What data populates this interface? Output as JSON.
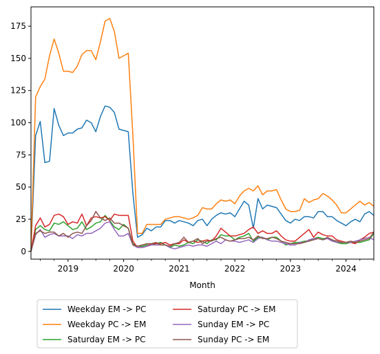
{
  "chart_data": {
    "type": "line",
    "title": "",
    "xlabel": "Month",
    "ylabel": "",
    "x_start": "2018-05",
    "x_end": "2024-07",
    "xlim": [
      "2018-05",
      "2024-07"
    ],
    "ylim": [
      -6,
      190
    ],
    "x_ticks": [
      {
        "label": "2019",
        "date": "2019-01"
      },
      {
        "label": "2020",
        "date": "2020-01"
      },
      {
        "label": "2021",
        "date": "2021-01"
      },
      {
        "label": "2022",
        "date": "2022-01"
      },
      {
        "label": "2023",
        "date": "2023-01"
      },
      {
        "label": "2024",
        "date": "2024-01"
      }
    ],
    "y_ticks": [
      0,
      25,
      50,
      75,
      100,
      125,
      150,
      175
    ],
    "grid": false,
    "legend_position": "below",
    "series": [
      {
        "name": "Weekday EM -> PC",
        "color": "#1f77b4",
        "values": [
          0,
          90,
          101,
          69,
          70,
          111,
          98,
          90,
          92,
          92,
          95,
          96,
          102,
          100,
          93,
          105,
          113,
          112,
          108,
          95,
          94,
          93,
          45,
          11,
          13,
          18,
          16,
          19,
          19,
          24,
          24,
          22,
          24,
          23,
          22,
          20,
          24,
          25,
          20,
          25,
          28,
          30,
          29,
          30,
          27,
          33,
          39,
          36,
          18,
          41,
          33,
          36,
          35,
          34,
          29,
          24,
          22,
          25,
          24,
          27,
          27,
          26,
          31,
          31,
          27,
          27,
          24,
          22,
          20,
          23,
          25,
          23,
          29,
          31,
          28
        ]
      },
      {
        "name": "Weekday PC -> EM",
        "color": "#ff7f0e",
        "values": [
          0,
          120,
          128,
          134,
          152,
          165,
          154,
          140,
          140,
          139,
          144,
          153,
          156,
          156,
          149,
          163,
          179,
          181,
          171,
          150,
          152,
          154,
          90,
          14,
          14,
          21,
          21,
          21,
          21,
          25,
          26,
          27,
          27,
          26,
          25,
          26,
          28,
          34,
          33,
          33,
          37,
          40,
          39,
          40,
          37,
          43,
          47,
          49,
          47,
          51,
          44,
          47,
          47,
          48,
          40,
          33,
          31,
          31,
          32,
          41,
          38,
          40,
          41,
          45,
          43,
          40,
          36,
          30,
          30,
          33,
          36,
          39,
          36,
          38,
          35
        ]
      },
      {
        "name": "Saturday EM -> PC",
        "color": "#2ca02c",
        "values": [
          0,
          17,
          20,
          17,
          16,
          22,
          21,
          23,
          20,
          17,
          18,
          23,
          17,
          19,
          22,
          23,
          28,
          24,
          19,
          17,
          21,
          18,
          6,
          4,
          4,
          5,
          5,
          6,
          7,
          5,
          3,
          5,
          4,
          5,
          7,
          6,
          9,
          8,
          6,
          9,
          9,
          13,
          12,
          12,
          9,
          11,
          12,
          14,
          8,
          11,
          11,
          9,
          11,
          11,
          8,
          5,
          6,
          7,
          7,
          8,
          8,
          10,
          11,
          10,
          10,
          9,
          7,
          6,
          6,
          7,
          7,
          7,
          8,
          9,
          14
        ]
      },
      {
        "name": "Saturday PC -> EM",
        "color": "#d62728",
        "values": [
          0,
          20,
          26,
          19,
          21,
          28,
          29,
          27,
          21,
          23,
          22,
          29,
          20,
          26,
          27,
          26,
          27,
          24,
          29,
          28,
          28,
          28,
          8,
          3,
          3,
          4,
          6,
          6,
          6,
          7,
          5,
          6,
          6,
          9,
          7,
          8,
          7,
          8,
          9,
          8,
          12,
          18,
          15,
          12,
          12,
          13,
          14,
          17,
          19,
          14,
          16,
          14,
          14,
          16,
          12,
          9,
          8,
          8,
          11,
          14,
          17,
          11,
          15,
          13,
          12,
          12,
          9,
          8,
          7,
          7,
          6,
          9,
          11,
          14,
          15
        ]
      },
      {
        "name": "Sunday EM -> PC",
        "color": "#9467bd",
        "values": [
          0,
          13,
          17,
          11,
          13,
          14,
          12,
          12,
          12,
          10,
          13,
          12,
          14,
          14,
          16,
          18,
          22,
          23,
          17,
          12,
          12,
          14,
          5,
          3,
          3,
          4,
          5,
          5,
          5,
          5,
          3,
          2,
          3,
          4,
          5,
          4,
          5,
          5,
          4,
          6,
          8,
          6,
          9,
          8,
          8,
          7,
          8,
          9,
          7,
          10,
          11,
          9,
          8,
          8,
          7,
          6,
          5,
          5,
          7,
          7,
          9,
          10,
          10,
          9,
          10,
          8,
          7,
          7,
          7,
          7,
          8,
          9,
          10,
          11,
          9
        ]
      },
      {
        "name": "Sunday PC -> EM",
        "color": "#8c564b",
        "values": [
          0,
          14,
          16,
          14,
          15,
          15,
          12,
          14,
          11,
          14,
          15,
          14,
          20,
          24,
          31,
          26,
          24,
          26,
          22,
          22,
          20,
          18,
          5,
          4,
          5,
          6,
          6,
          7,
          5,
          5,
          4,
          6,
          7,
          11,
          7,
          8,
          10,
          6,
          8,
          8,
          10,
          11,
          9,
          8,
          9,
          10,
          10,
          11,
          9,
          12,
          10,
          10,
          11,
          10,
          8,
          7,
          6,
          6,
          6,
          7,
          8,
          9,
          10,
          9,
          11,
          9,
          8,
          7,
          7,
          8,
          7,
          8,
          9,
          10,
          15
        ]
      }
    ]
  }
}
